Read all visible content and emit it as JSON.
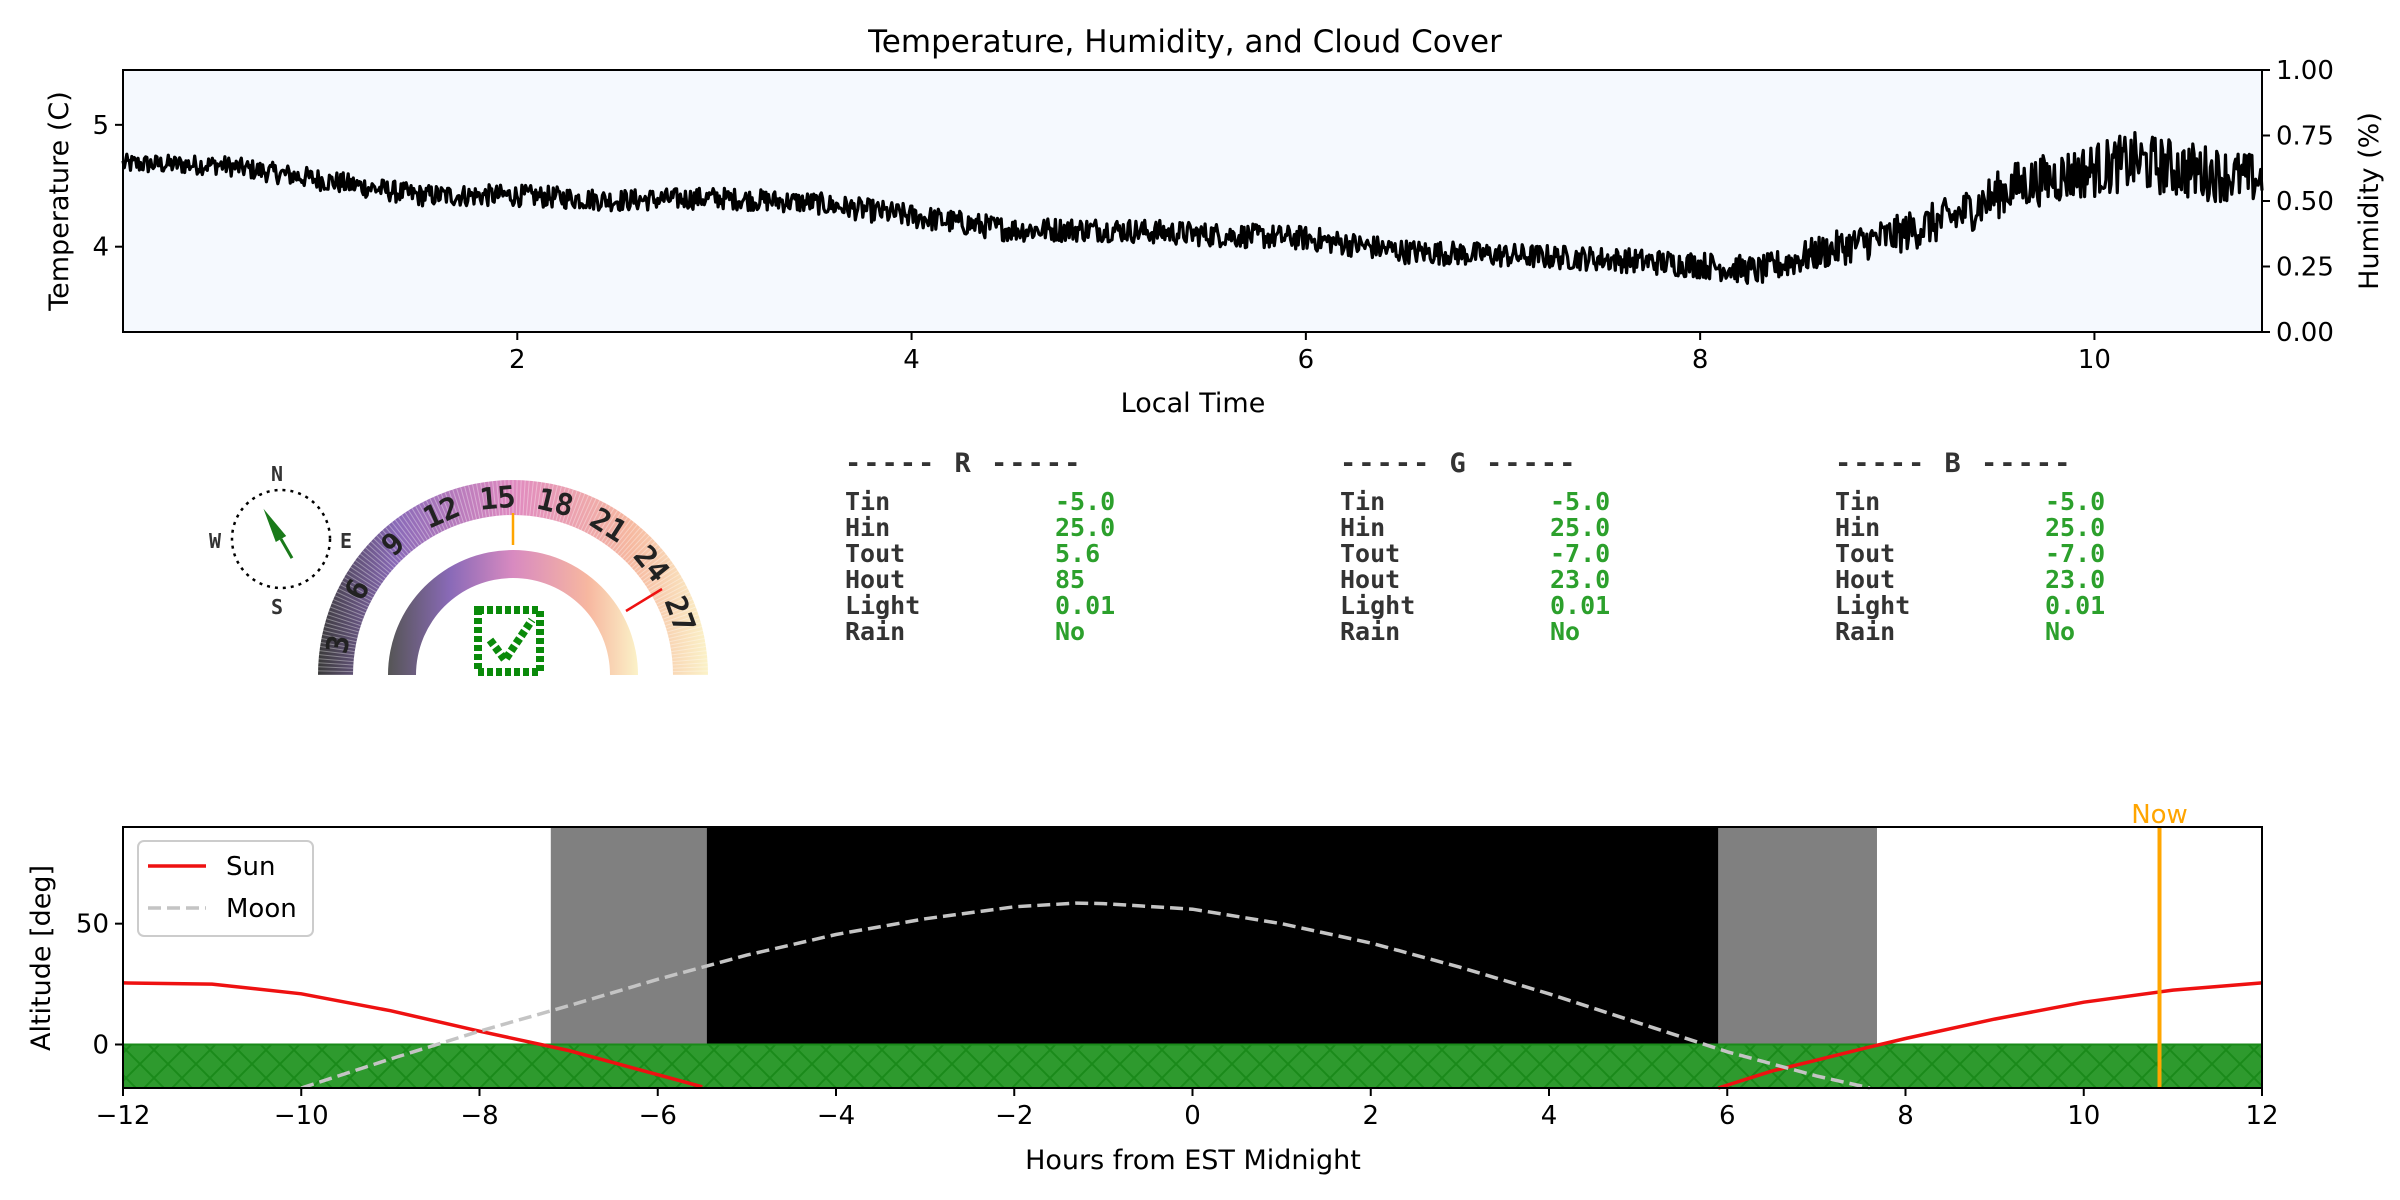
{
  "colors": {
    "plot_bg": "#f5f9fe",
    "sun": "#ee1111",
    "moon": "#bbbbbb",
    "now": "#ffa500",
    "ground": "#2e9a2e",
    "ground_hatch": "#1a8a1a",
    "twilight": "#808080",
    "night": "#000000",
    "value_green": "#2ca02c"
  },
  "chart_data": [
    {
      "type": "line",
      "title": "Temperature, Humidity, and Cloud Cover",
      "xlabel": "Local Time",
      "ylabel": "Temperature (C)",
      "ylabel_right": "Humidity (%)",
      "xlim": [
        0.0,
        10.85
      ],
      "ylim": [
        3.3,
        5.45
      ],
      "ylim_right": [
        0.0,
        1.0
      ],
      "xticks": [
        2,
        4,
        6,
        8,
        10
      ],
      "xtick_labels": [
        "2",
        "4",
        "6",
        "8",
        "10"
      ],
      "yticks": [
        4,
        5
      ],
      "ytick_labels": [
        "4",
        "5"
      ],
      "yticks_right": [
        0.0,
        0.25,
        0.5,
        0.75,
        1.0
      ],
      "ytick_labels_right": [
        "0.00",
        "0.25",
        "0.50",
        "0.75",
        "1.00"
      ],
      "series": [
        {
          "name": "Temperature",
          "color": "#000000",
          "x": [
            0.0,
            0.5,
            1.0,
            1.5,
            2.0,
            2.5,
            3.0,
            3.5,
            4.0,
            4.5,
            5.0,
            5.5,
            6.0,
            6.5,
            7.0,
            7.5,
            8.0,
            8.3,
            8.6,
            9.0,
            9.3,
            9.6,
            9.9,
            10.2,
            10.5,
            10.85
          ],
          "values": [
            4.68,
            4.67,
            4.55,
            4.42,
            4.42,
            4.38,
            4.4,
            4.36,
            4.25,
            4.14,
            4.14,
            4.1,
            4.07,
            3.96,
            3.93,
            3.9,
            3.85,
            3.8,
            3.95,
            4.1,
            4.25,
            4.5,
            4.6,
            4.7,
            4.62,
            4.55
          ],
          "noise": [
            0.08,
            0.08,
            0.09,
            0.09,
            0.09,
            0.09,
            0.09,
            0.09,
            0.1,
            0.1,
            0.1,
            0.1,
            0.1,
            0.1,
            0.1,
            0.1,
            0.11,
            0.12,
            0.14,
            0.16,
            0.18,
            0.2,
            0.22,
            0.24,
            0.24,
            0.2
          ]
        }
      ]
    },
    {
      "type": "line",
      "xlabel": "Hours from EST Midnight",
      "ylabel": "Altitude [deg]",
      "xlim": [
        -12,
        12
      ],
      "ylim": [
        -18,
        90
      ],
      "xticks": [
        -12,
        -10,
        -8,
        -6,
        -4,
        -2,
        0,
        2,
        4,
        6,
        8,
        10,
        12
      ],
      "xtick_labels": [
        "−12",
        "−10",
        "−8",
        "−6",
        "−4",
        "−2",
        "0",
        "2",
        "4",
        "6",
        "8",
        "10",
        "12"
      ],
      "yticks": [
        0,
        50
      ],
      "ytick_labels": [
        "0",
        "50"
      ],
      "legend": [
        "Sun",
        "Moon"
      ],
      "legend_position": "top-left",
      "now_label": "Now",
      "now_x": 10.85,
      "twilight_spans": [
        [
          -7.2,
          -5.45
        ],
        [
          5.9,
          7.68
        ]
      ],
      "night_span": [
        -5.45,
        5.9
      ],
      "ground_span_y": [
        -18,
        0
      ],
      "series": [
        {
          "name": "Sun",
          "style": "solid",
          "x": [
            -12,
            -11,
            -10,
            -9,
            -8,
            -7,
            -6.5,
            -6,
            -5.5
          ],
          "values": [
            25.5,
            25.0,
            21.0,
            14.0,
            5.5,
            -2.5,
            -7.5,
            -12.5,
            -17.5
          ],
          "x2": [
            5.9,
            6.5,
            7,
            7.6,
            8,
            9,
            10,
            11,
            12
          ],
          "values2": [
            -18,
            -11,
            -6.5,
            -1,
            2.5,
            10.5,
            17.5,
            22.5,
            25.5
          ]
        },
        {
          "name": "Moon",
          "style": "dashed",
          "x": [
            -10,
            -9,
            -8,
            -7,
            -6,
            -5,
            -4,
            -3,
            -2,
            -1.3,
            -1,
            0,
            1,
            2,
            3,
            4,
            5,
            6,
            7,
            7.6
          ],
          "values": [
            -18,
            -6,
            5.5,
            16,
            27,
            37,
            45.5,
            52,
            57,
            58.5,
            58.3,
            56,
            50,
            42,
            32,
            21,
            9,
            -3,
            -13,
            -18
          ]
        }
      ]
    }
  ],
  "thermo": {
    "outer_labels": [
      "3",
      "6",
      "9",
      "12",
      "15",
      "18",
      "21",
      "24",
      "27"
    ],
    "compass": {
      "n": "N",
      "s": "S",
      "e": "E",
      "w": "W"
    },
    "wind_direction_deg": 330
  },
  "panels": [
    {
      "header": "----- R -----",
      "rows": [
        {
          "label": "Tin",
          "value": "-5.0"
        },
        {
          "label": "Hin",
          "value": "25.0"
        },
        {
          "label": "Tout",
          "value": "5.6"
        },
        {
          "label": "Hout",
          "value": "85"
        },
        {
          "label": "Light",
          "value": "0.01"
        },
        {
          "label": "Rain",
          "value": "No"
        }
      ]
    },
    {
      "header": "----- G -----",
      "rows": [
        {
          "label": "Tin",
          "value": "-5.0"
        },
        {
          "label": "Hin",
          "value": "25.0"
        },
        {
          "label": "Tout",
          "value": "-7.0"
        },
        {
          "label": "Hout",
          "value": "23.0"
        },
        {
          "label": "Light",
          "value": "0.01"
        },
        {
          "label": "Rain",
          "value": "No"
        }
      ]
    },
    {
      "header": "----- B -----",
      "rows": [
        {
          "label": "Tin",
          "value": "-5.0"
        },
        {
          "label": "Hin",
          "value": "25.0"
        },
        {
          "label": "Tout",
          "value": "-7.0"
        },
        {
          "label": "Hout",
          "value": "23.0"
        },
        {
          "label": "Light",
          "value": "0.01"
        },
        {
          "label": "Rain",
          "value": "No"
        }
      ]
    }
  ]
}
